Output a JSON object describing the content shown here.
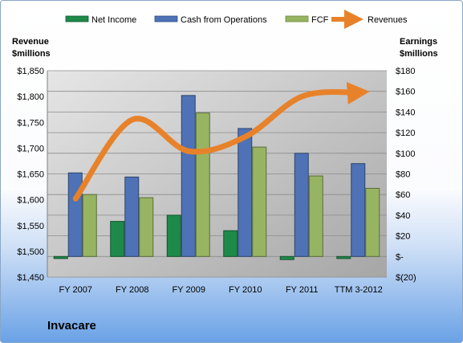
{
  "company": "Invacare",
  "chart_data": {
    "type": "bar",
    "categories": [
      "FY 2007",
      "FY 2008",
      "FY 2009",
      "FY 2010",
      "FY 2011",
      "TTM 3-2012"
    ],
    "series": [
      {
        "name": "Net Income",
        "axis": "right",
        "kind": "bar",
        "color": "#1e8a4a",
        "values": [
          -2,
          34,
          40,
          25,
          -3,
          -2
        ]
      },
      {
        "name": "Cash from Operations",
        "axis": "right",
        "kind": "bar",
        "color": "#4e72b5",
        "values": [
          81,
          77,
          156,
          124,
          100,
          90
        ]
      },
      {
        "name": "FCF",
        "axis": "right",
        "kind": "bar",
        "color": "#97b463",
        "values": [
          60,
          57,
          139,
          106,
          78,
          66
        ]
      },
      {
        "name": "Revenues",
        "axis": "left",
        "kind": "line",
        "color": "#e8822a",
        "values": [
          1602,
          1755,
          1694,
          1722,
          1800,
          1808
        ]
      }
    ],
    "left_axis": {
      "title_lines": [
        "Revenue",
        "$millions"
      ],
      "range": [
        1450,
        1850
      ],
      "ticks": [
        1450,
        1500,
        1550,
        1600,
        1650,
        1700,
        1750,
        1800,
        1850
      ],
      "tick_labels": [
        "$1,450",
        "$1,500",
        "$1,550",
        "$1,600",
        "$1,650",
        "$1,700",
        "$1,750",
        "$1,800",
        "$1,850"
      ]
    },
    "right_axis": {
      "title_lines": [
        "Earnings",
        "$millions"
      ],
      "range": [
        -20,
        180
      ],
      "ticks": [
        -20,
        0,
        20,
        40,
        60,
        80,
        100,
        120,
        140,
        160,
        180
      ],
      "tick_labels": [
        "$(20)",
        "$-",
        "$20",
        "$40",
        "$60",
        "$80",
        "$100",
        "$120",
        "$140",
        "$160",
        "$180"
      ]
    },
    "grid": true,
    "legend_position": "top",
    "plot_background": "gray gradient"
  }
}
